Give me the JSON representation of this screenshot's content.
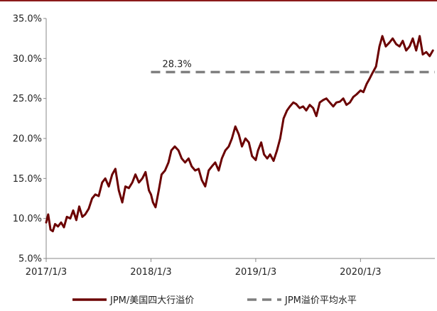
{
  "chart_data": {
    "type": "line",
    "title": "",
    "xlabel": "",
    "ylabel": "",
    "ylim": [
      5.0,
      35.0
    ],
    "yticks": [
      "5.0%",
      "10.0%",
      "15.0%",
      "20.0%",
      "25.0%",
      "30.0%",
      "35.0%"
    ],
    "xticks": [
      "2017/1/3",
      "2018/1/3",
      "2019/1/3",
      "2020/1/3"
    ],
    "grid": false,
    "legend_position": "bottom",
    "series": [
      {
        "name": "JPM/美国四大行溢价",
        "style": "solid",
        "color": "#6b0000",
        "x": [
          "2017-01-03",
          "2017-01-10",
          "2017-01-18",
          "2017-01-26",
          "2017-02-03",
          "2017-02-13",
          "2017-02-24",
          "2017-03-06",
          "2017-03-16",
          "2017-03-28",
          "2017-04-07",
          "2017-04-18",
          "2017-04-28",
          "2017-05-09",
          "2017-05-19",
          "2017-05-31",
          "2017-06-12",
          "2017-06-23",
          "2017-07-05",
          "2017-07-17",
          "2017-07-28",
          "2017-08-09",
          "2017-08-21",
          "2017-09-01",
          "2017-09-13",
          "2017-09-25",
          "2017-10-06",
          "2017-10-18",
          "2017-10-30",
          "2017-11-10",
          "2017-11-22",
          "2017-12-04",
          "2017-12-15",
          "2017-12-27",
          "2018-01-03",
          "2018-01-10",
          "2018-01-19",
          "2018-01-30",
          "2018-02-09",
          "2018-02-21",
          "2018-03-05",
          "2018-03-15",
          "2018-03-27",
          "2018-04-09",
          "2018-04-20",
          "2018-05-02",
          "2018-05-14",
          "2018-05-25",
          "2018-06-06",
          "2018-06-18",
          "2018-06-29",
          "2018-07-11",
          "2018-07-23",
          "2018-08-03",
          "2018-08-15",
          "2018-08-27",
          "2018-09-07",
          "2018-09-19",
          "2018-10-01",
          "2018-10-12",
          "2018-10-24",
          "2018-11-05",
          "2018-11-16",
          "2018-11-28",
          "2018-12-10",
          "2018-12-21",
          "2019-01-03",
          "2019-01-11",
          "2019-01-22",
          "2019-02-01",
          "2019-02-12",
          "2019-02-22",
          "2019-03-06",
          "2019-03-18",
          "2019-03-29",
          "2019-04-10",
          "2019-04-22",
          "2019-05-02",
          "2019-05-14",
          "2019-05-24",
          "2019-06-05",
          "2019-06-17",
          "2019-06-28",
          "2019-07-10",
          "2019-07-22",
          "2019-08-02",
          "2019-08-14",
          "2019-08-26",
          "2019-09-06",
          "2019-09-18",
          "2019-09-30",
          "2019-10-11",
          "2019-10-23",
          "2019-11-04",
          "2019-11-15",
          "2019-11-27",
          "2019-12-09",
          "2019-12-20",
          "2020-01-03",
          "2020-01-13",
          "2020-01-24",
          "2020-02-04",
          "2020-02-14",
          "2020-02-26",
          "2020-03-09",
          "2020-03-19",
          "2020-03-31",
          "2020-04-13",
          "2020-04-24",
          "2020-05-06",
          "2020-05-18",
          "2020-05-29",
          "2020-06-10",
          "2020-06-22",
          "2020-07-03",
          "2020-07-15",
          "2020-07-27",
          "2020-08-07",
          "2020-08-19",
          "2020-08-31",
          "2020-09-11"
        ],
        "y": [
          9.5,
          10.5,
          8.6,
          8.4,
          9.3,
          9.0,
          9.5,
          8.9,
          10.2,
          10.0,
          11.0,
          9.8,
          11.5,
          10.2,
          10.5,
          11.2,
          12.5,
          13.0,
          12.8,
          14.5,
          15.0,
          14.0,
          15.5,
          16.2,
          13.5,
          12.0,
          14.0,
          13.8,
          14.5,
          15.5,
          14.5,
          15.0,
          15.8,
          13.5,
          13.0,
          12.0,
          11.4,
          13.5,
          15.5,
          16.0,
          17.0,
          18.5,
          19.0,
          18.5,
          17.5,
          17.0,
          17.5,
          16.5,
          16.0,
          16.2,
          14.8,
          14.0,
          16.0,
          16.5,
          17.0,
          16.0,
          17.5,
          18.5,
          19.0,
          20.0,
          21.5,
          20.5,
          19.0,
          20.0,
          19.5,
          17.8,
          17.3,
          18.5,
          19.5,
          18.0,
          17.5,
          18.0,
          17.2,
          18.5,
          20.0,
          22.5,
          23.5,
          24.0,
          24.5,
          24.3,
          23.8,
          24.0,
          23.5,
          24.2,
          23.8,
          22.8,
          24.5,
          24.8,
          25.0,
          24.5,
          24.0,
          24.5,
          24.6,
          25.0,
          24.2,
          24.5,
          25.2,
          25.5,
          26.0,
          25.8,
          26.8,
          27.5,
          28.2,
          29.0,
          31.5,
          32.8,
          31.5,
          32.0,
          32.5,
          31.8,
          31.5,
          32.2,
          31.0,
          31.5,
          32.5,
          31.0,
          32.8,
          30.5,
          30.8,
          30.3,
          31.0
        ]
      },
      {
        "name": "JPM溢价平均水平",
        "style": "dashed",
        "color": "#7f7f7f",
        "value": 28.3,
        "x_start": "2018-01-03",
        "label": "28.3%"
      }
    ]
  }
}
